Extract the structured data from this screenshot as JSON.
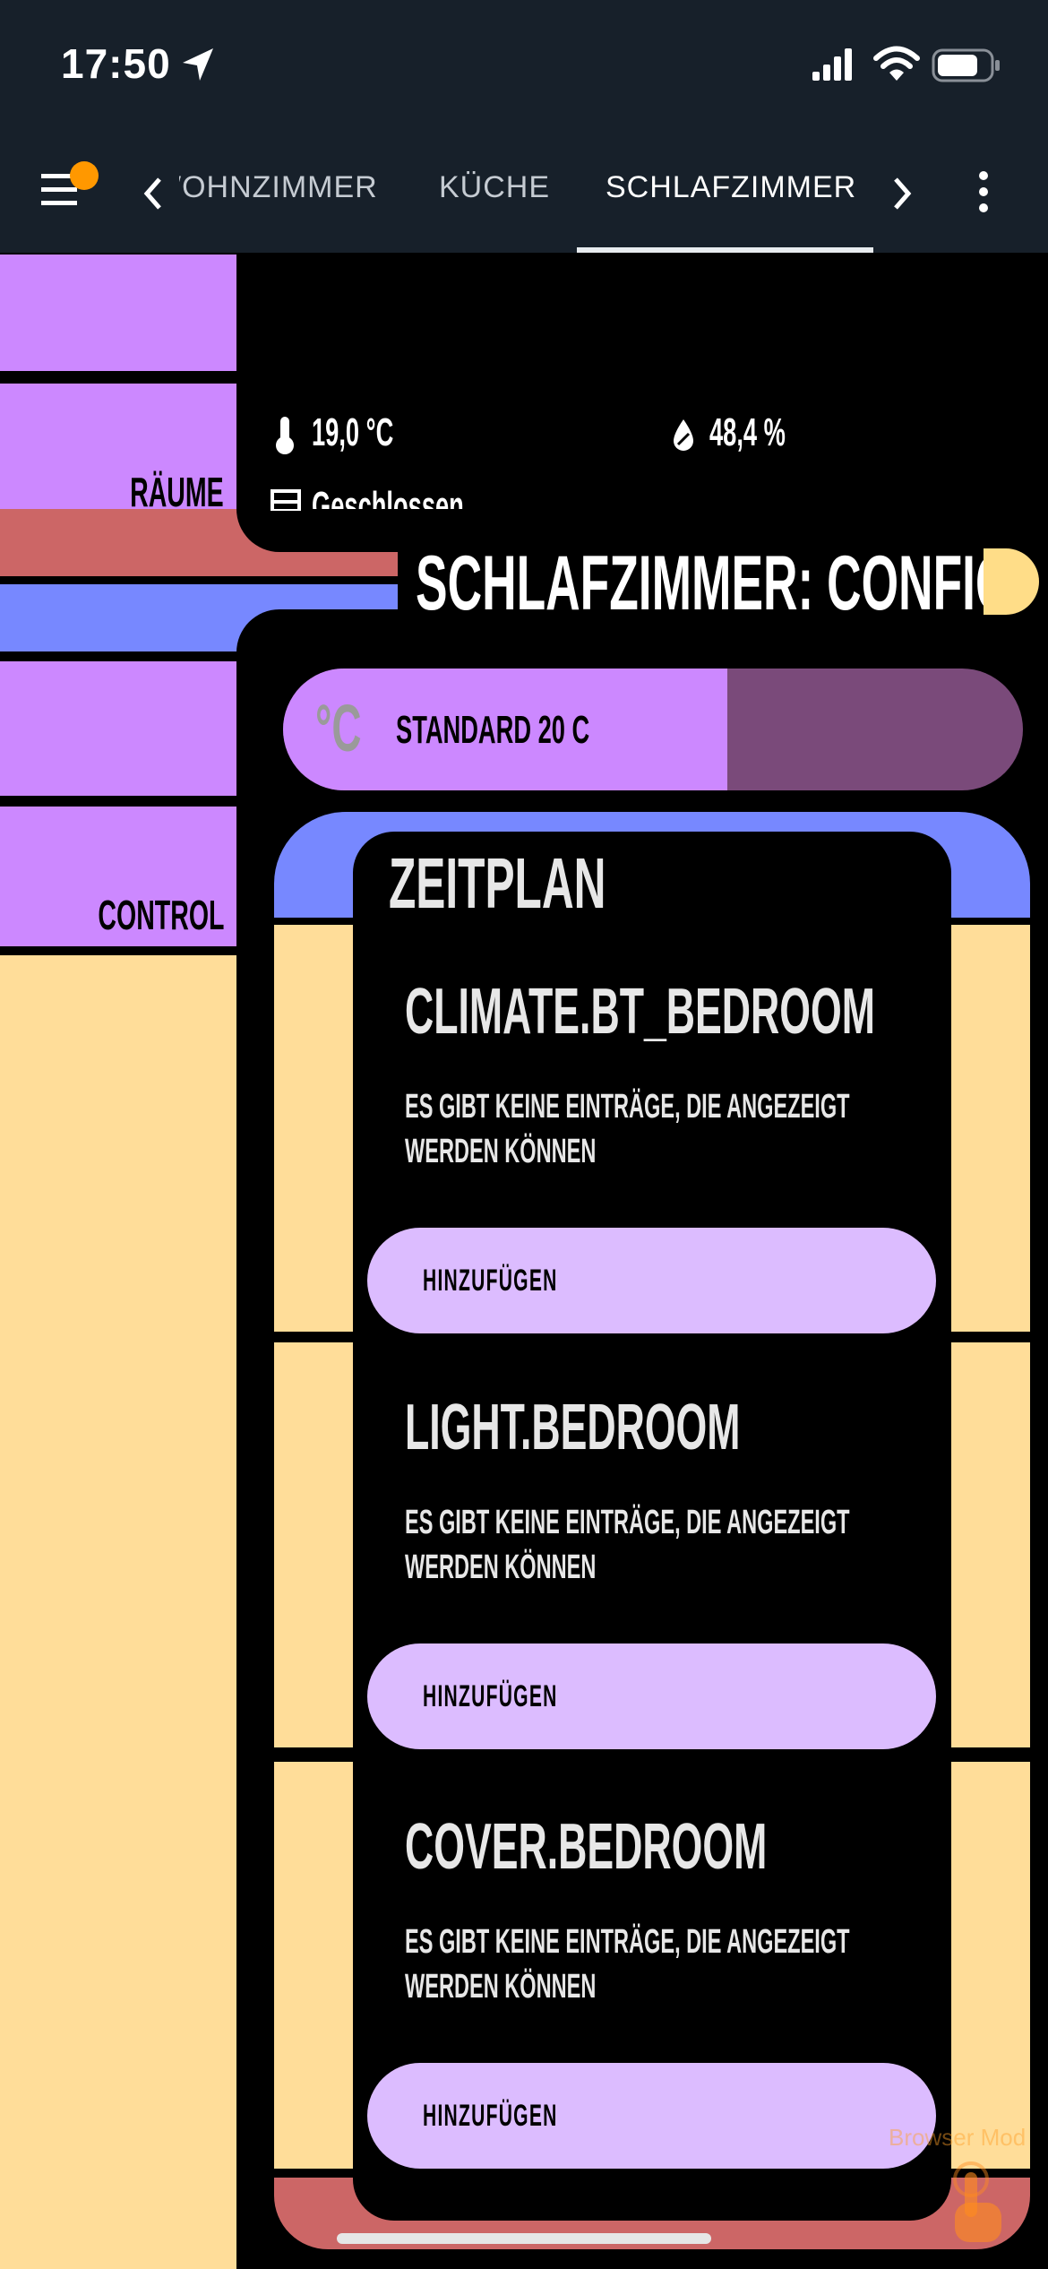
{
  "status_bar": {
    "time": "17:50"
  },
  "app_bar": {
    "tabs": [
      "WOHNZIMMER",
      "KÜCHE",
      "SCHLAFZIMMER"
    ],
    "active_tab": "SCHLAFZIMMER"
  },
  "sidebar": {
    "raeume_label": "RÄUME",
    "control_label": "CONTROL"
  },
  "sensors": {
    "temperature": "19,0 °C",
    "humidity": "48,4 %",
    "window": "Geschlossen"
  },
  "header": {
    "title": "SCHLAFZIMMER: CONFIG"
  },
  "preset": {
    "label": "STANDARD 20 C",
    "unit_icon": "°C",
    "level": 0.6
  },
  "schedule": {
    "title": "ZEITPLAN",
    "sections": [
      {
        "entity": "CLIMATE.BT_BEDROOM",
        "empty_line1": "ES GIBT KEINE EINTRÄGE, DIE ANGEZEIGT",
        "empty_line2": "WERDEN KÖNNEN",
        "button": "HINZUFÜGEN"
      },
      {
        "entity": "LIGHT.BEDROOM",
        "empty_line1": "ES GIBT KEINE EINTRÄGE, DIE ANGEZEIGT",
        "empty_line2": "WERDEN KÖNNEN",
        "button": "HINZUFÜGEN"
      },
      {
        "entity": "COVER.BEDROOM",
        "empty_line1": "ES GIBT KEINE EINTRÄGE, DIE ANGEZEIGT",
        "empty_line2": "WERDEN KÖNNEN",
        "button": "HINZUFÜGEN"
      }
    ]
  },
  "browser_mod": {
    "label": "Browser Mod"
  },
  "colors": {
    "sidebar": "#cc88ff",
    "lower_sidebar": "#ffdd99",
    "red_bar": "#cc6666",
    "blue_bar": "#7788ff",
    "button": "#dcbcff",
    "app_bar": "#17202a"
  }
}
